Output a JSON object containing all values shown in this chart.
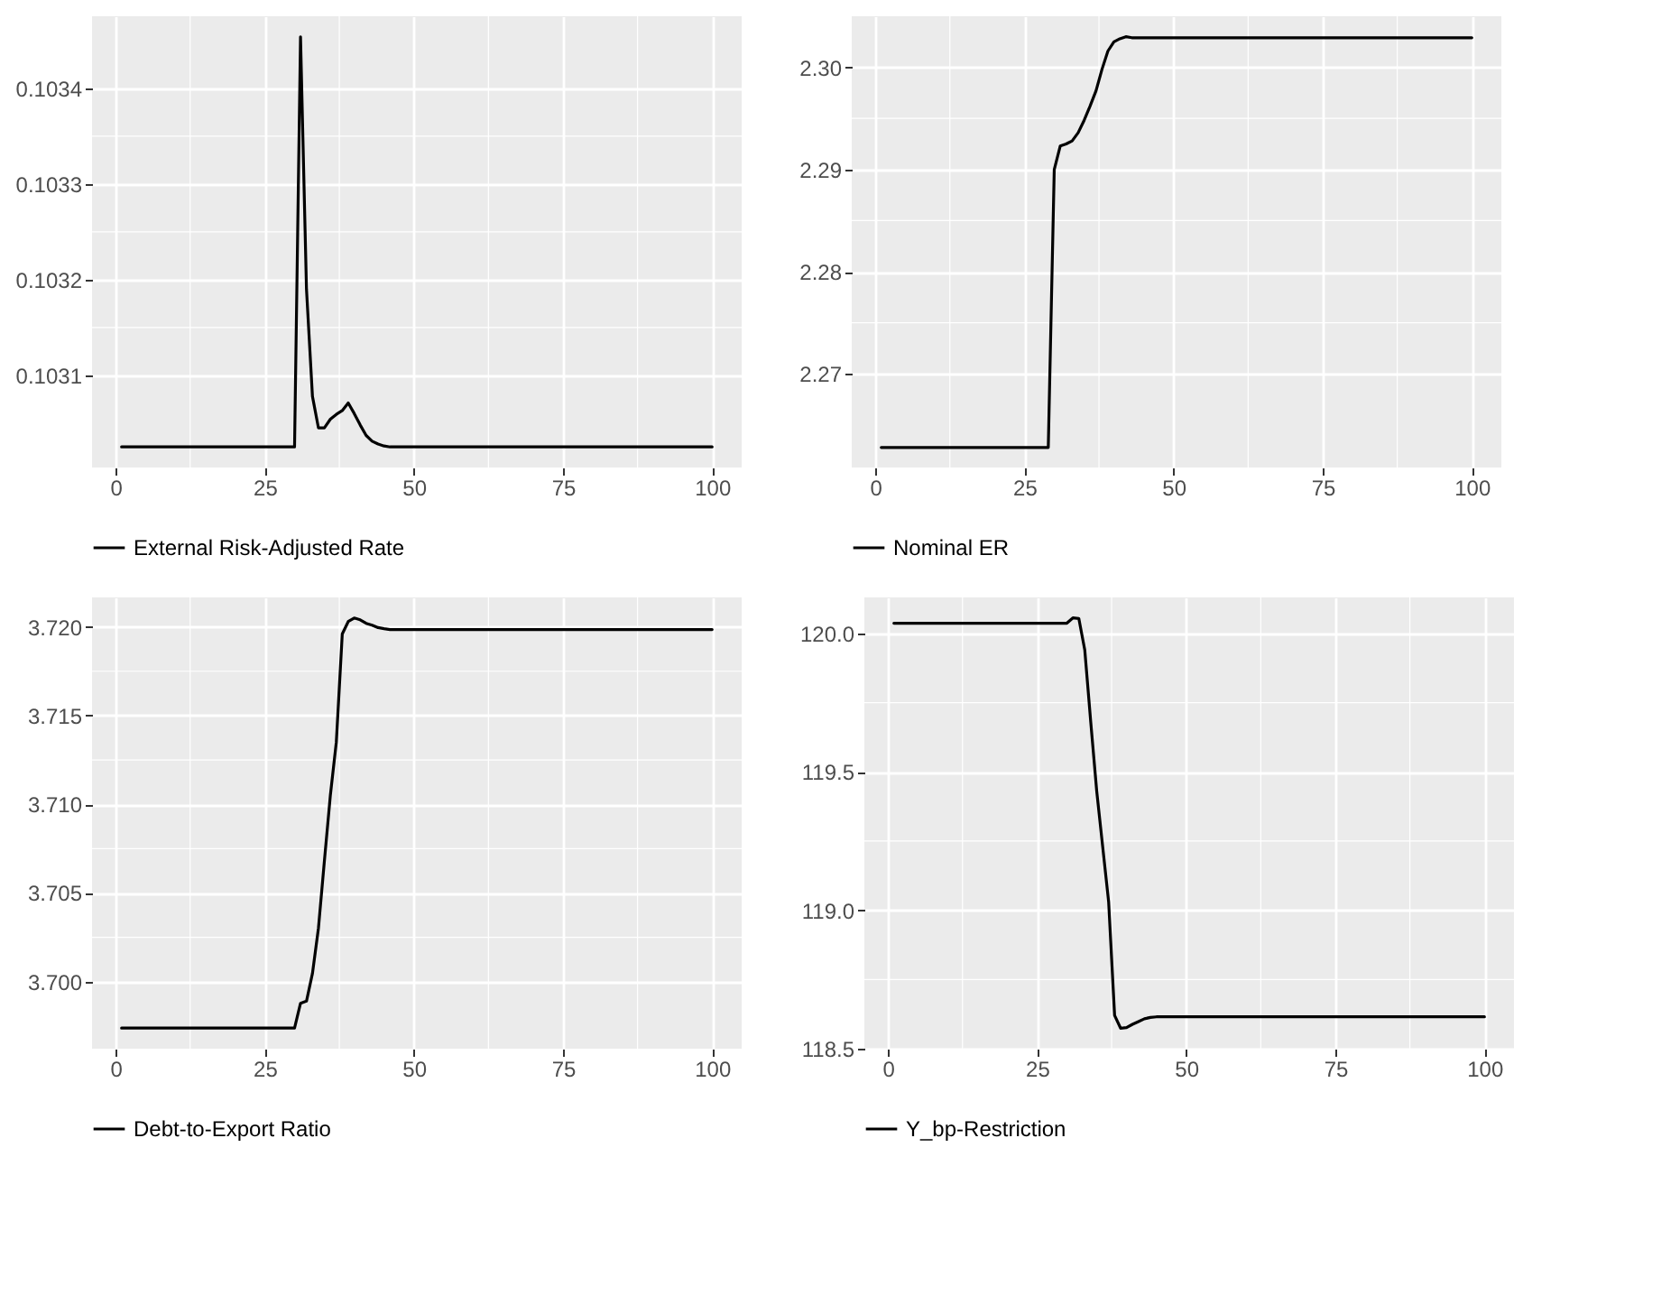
{
  "chart_data": [
    {
      "type": "line",
      "legend": "bottom",
      "grid": true,
      "xlim": [
        -3.95,
        104.95
      ],
      "xticks": [
        0,
        25,
        50,
        75,
        100
      ],
      "ylim": [
        0.1030035,
        0.1034755
      ],
      "yticks": [
        0.1031,
        0.1032,
        0.1033,
        0.1034
      ],
      "series": [
        {
          "name": "External Risk-Adjusted Rate",
          "color": "#000000",
          "x": [
            1,
            30,
            31,
            32,
            33,
            34,
            35,
            36,
            37,
            38,
            39,
            40,
            41,
            42,
            43,
            44,
            45,
            46,
            100
          ],
          "values": [
            0.103025,
            0.103025,
            0.103454,
            0.10319,
            0.103078,
            0.103045,
            0.103045,
            0.103054,
            0.103059,
            0.103063,
            0.103071,
            0.10306,
            0.103048,
            0.103037,
            0.103031,
            0.103028,
            0.103026,
            0.103025,
            0.103025
          ]
        }
      ]
    },
    {
      "type": "line",
      "legend": "bottom",
      "grid": true,
      "xlim": [
        -3.95,
        104.95
      ],
      "xticks": [
        0,
        25,
        50,
        75,
        100
      ],
      "ylim": [
        2.26084,
        2.305
      ],
      "yticks": [
        2.27,
        2.28,
        2.29,
        {
          "value": 2.3,
          "label": "2.30"
        }
      ],
      "series": [
        {
          "name": "Nominal ER",
          "color": "#000000",
          "x": [
            1,
            29,
            30,
            31,
            32,
            33,
            34,
            35,
            36,
            37,
            38,
            39,
            40,
            41,
            42,
            43,
            100
          ],
          "values": [
            2.2628,
            2.2628,
            2.29,
            2.2923,
            2.2925,
            2.2928,
            2.2936,
            2.2948,
            2.2962,
            2.2977,
            2.2998,
            2.3016,
            2.3025,
            2.3028,
            2.303,
            2.3029,
            2.3029
          ]
        }
      ]
    },
    {
      "type": "line",
      "legend": "bottom",
      "grid": true,
      "xlim": [
        -3.95,
        104.95
      ],
      "xticks": [
        0,
        25,
        50,
        75,
        100
      ],
      "ylim": [
        3.69622,
        3.72166
      ],
      "yticks": [
        {
          "value": 3.7,
          "label": "3.700"
        },
        3.705,
        {
          "value": 3.71,
          "label": "3.710"
        },
        3.715,
        {
          "value": 3.72,
          "label": "3.720"
        }
      ],
      "series": [
        {
          "name": "Debt-to-Export Ratio",
          "color": "#000000",
          "x": [
            1,
            30,
            31,
            32,
            33,
            34,
            35,
            36,
            37,
            38,
            39,
            40,
            41,
            42,
            43,
            44,
            45,
            46,
            100
          ],
          "values": [
            3.69738,
            3.69738,
            3.69878,
            3.6989,
            3.70046,
            3.703,
            3.7068,
            3.7105,
            3.7135,
            3.7196,
            3.7203,
            3.7205,
            3.7204,
            3.7202,
            3.7201,
            3.71996,
            3.7199,
            3.71985,
            3.71985
          ]
        }
      ]
    },
    {
      "type": "line",
      "legend": "bottom",
      "grid": true,
      "xlim": [
        -3.95,
        104.95
      ],
      "xticks": [
        0,
        25,
        50,
        75,
        100
      ],
      "ylim": [
        118.5,
        120.13
      ],
      "yticks": [
        118.5,
        {
          "value": 119,
          "label": "119.0"
        },
        119.5,
        {
          "value": 120,
          "label": "120.0"
        }
      ],
      "series": [
        {
          "name": "Y_bp-Restriction",
          "color": "#000000",
          "x": [
            1,
            30,
            31,
            32,
            33,
            34,
            35,
            36,
            37,
            38,
            39,
            40,
            41,
            42,
            43,
            44,
            45,
            46,
            100
          ],
          "values": [
            120.037,
            120.037,
            120.056,
            120.054,
            119.94,
            119.68,
            119.43,
            119.23,
            119.03,
            118.62,
            118.574,
            118.576,
            118.588,
            118.598,
            118.608,
            118.613,
            118.615,
            118.615,
            118.615
          ]
        }
      ]
    }
  ]
}
